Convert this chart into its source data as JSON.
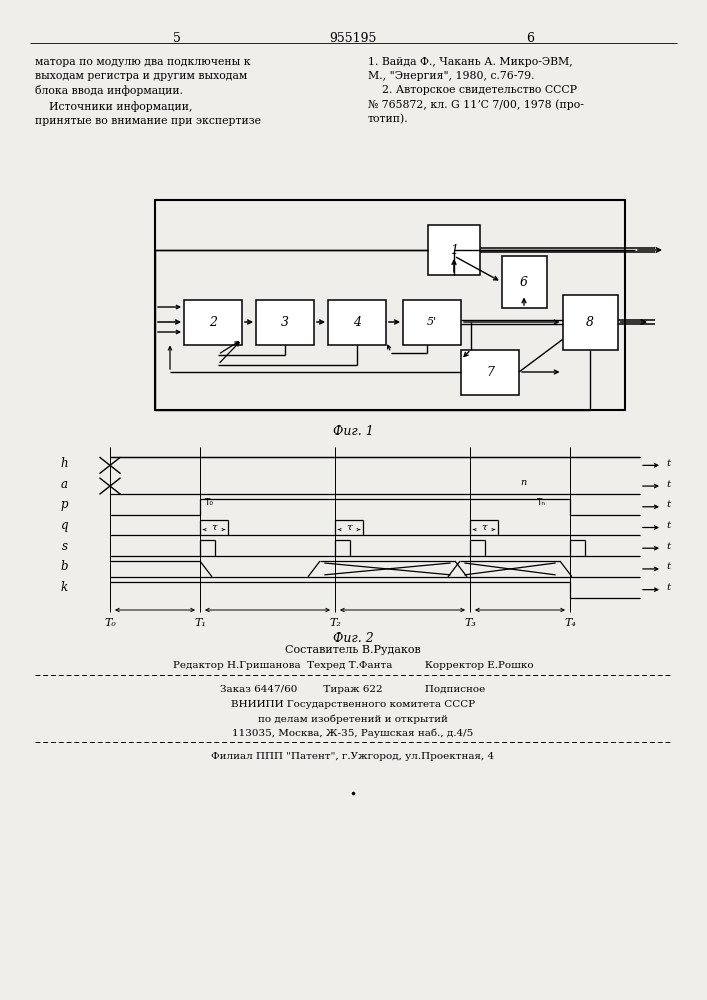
{
  "page_number_left": "5",
  "patent_number": "955195",
  "page_number_right": "6",
  "text_left": "матора по модулю два подключены к\nвыходам регистра и другим выходам\nблока ввода информации.\n    Источники информации,\nпринятые во внимание при экспертизе",
  "text_right": "1. Вайда Ф., Чакань А. Микро-ЭВМ,\nМ., \"Энергия\", 1980, с.76-79.\n    2. Авторское свидетельство СССР\n№ 765872, кл. G 11ʼC 7/00, 1978 (про-\nтотип).",
  "fig1_caption": "Фиг. 1",
  "fig2_caption": "Фиг. 2",
  "footer_line1": "Составитель В.Рудаков",
  "footer_line2": "Редактор Н.Гришанова  Техред Т.Фанта          Корректор Е.Рошко",
  "footer_line3": "Заказ 6447/60        Тираж 622             Подписное",
  "footer_line4": "ВНИИПИ Государственного комитета СССР",
  "footer_line5": "по делам изобретений и открытий",
  "footer_line6": "113035, Москва, Ж-35, Раушская наб., д.4/5",
  "footer_line7": "Филиал ППП \"Патент\", г.Ужгород, ул.Проектная, 4",
  "bg_color": "#f0eeea",
  "box_facecolor": "#ffffff"
}
